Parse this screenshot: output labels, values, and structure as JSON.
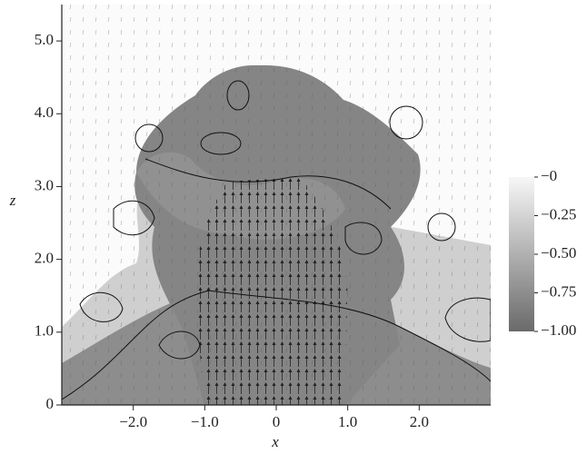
{
  "chart_data": {
    "type": "field",
    "xlabel": "x",
    "ylabel": "z",
    "xlim": [
      -3,
      3
    ],
    "ylim": [
      0,
      5.5
    ],
    "xticks": [
      {
        "value": -2,
        "label": "−2.0"
      },
      {
        "value": -1,
        "label": "−1.0"
      },
      0,
      {
        "value": 1,
        "label": "1.0"
      },
      {
        "value": 2,
        "label": "2.0"
      }
    ],
    "yticks": [
      0,
      {
        "value": 1,
        "label": "1.0"
      },
      {
        "value": 2,
        "label": "2.0"
      },
      {
        "value": 3,
        "label": "3.0"
      },
      {
        "value": 4,
        "label": "4.0"
      },
      {
        "value": 5,
        "label": "5.0"
      }
    ],
    "colorbar": {
      "clim": [
        -1,
        0
      ],
      "ticks": [
        {
          "value": 0,
          "label": "−0"
        },
        {
          "value": -0.25,
          "label": "−0.25"
        },
        {
          "value": -0.5,
          "label": "−0.50"
        },
        {
          "value": -0.75,
          "label": "−0.75"
        },
        {
          "value": -1,
          "label": "−1.00"
        }
      ]
    }
  }
}
